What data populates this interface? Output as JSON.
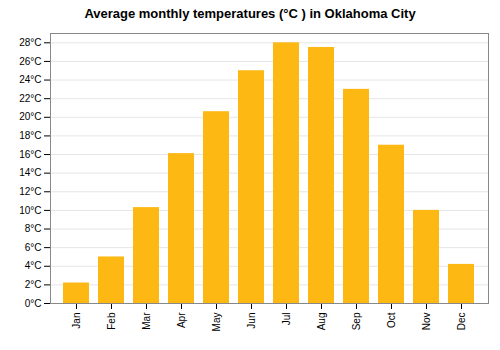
{
  "chart_data": {
    "type": "bar",
    "title": "Average monthly temperatures (°C ) in Oklahoma City",
    "categories": [
      "Jan",
      "Feb",
      "Mar",
      "Apr",
      "May",
      "Jun",
      "Jul",
      "Aug",
      "Sep",
      "Oct",
      "Nov",
      "Dec"
    ],
    "values": [
      2.2,
      5.0,
      10.3,
      16.1,
      20.6,
      25.0,
      28.0,
      27.5,
      23.0,
      17.0,
      10.0,
      4.2
    ],
    "color": "#FDB813",
    "ylim": [
      0,
      29
    ],
    "yticks": [
      {
        "value": 0,
        "label": "0°C"
      },
      {
        "value": 2,
        "label": "2°C"
      },
      {
        "value": 4,
        "label": "4°C"
      },
      {
        "value": 6,
        "label": "6°C"
      },
      {
        "value": 8,
        "label": "8°C"
      },
      {
        "value": 10,
        "label": "10°C"
      },
      {
        "value": 12,
        "label": "12°C"
      },
      {
        "value": 14,
        "label": "14°C"
      },
      {
        "value": 16,
        "label": "16°C"
      },
      {
        "value": 18,
        "label": "18°C"
      },
      {
        "value": 20,
        "label": "20°C"
      },
      {
        "value": 22,
        "label": "22°C"
      },
      {
        "value": 24,
        "label": "24°C"
      },
      {
        "value": 26,
        "label": "26°C"
      },
      {
        "value": 28,
        "label": "28°C"
      }
    ],
    "grid": true
  }
}
